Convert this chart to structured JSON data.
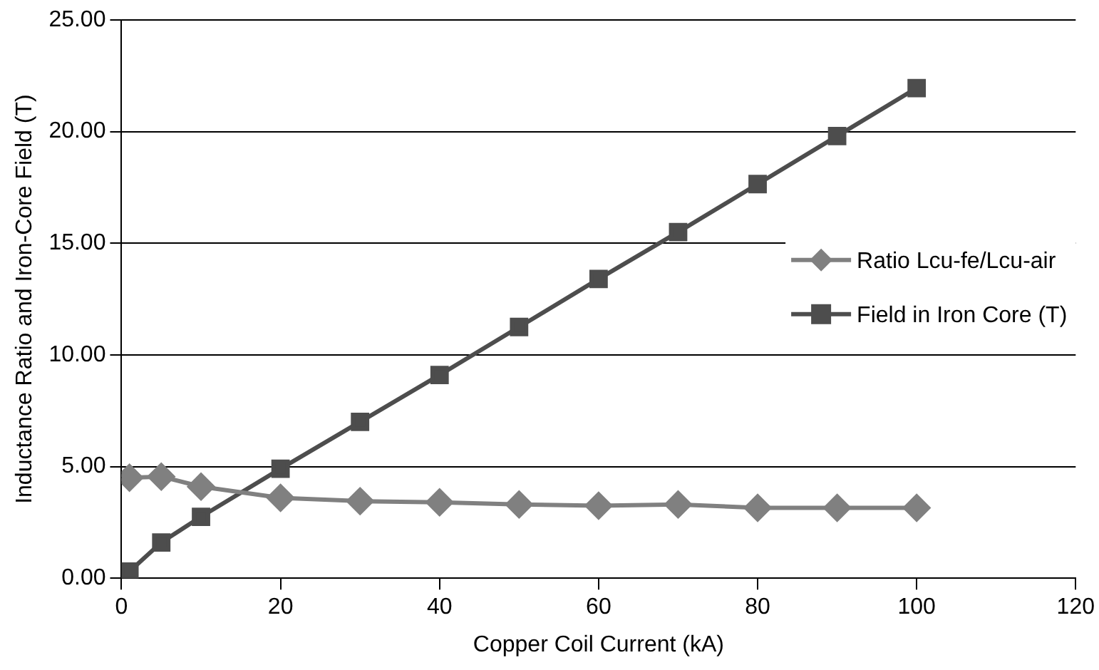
{
  "chart_data": {
    "type": "line",
    "xlabel": "Copper Coil Current (kA)",
    "ylabel": "Inductance Ratio and Iron-Core Field (T)",
    "x": [
      1,
      5,
      10,
      20,
      30,
      40,
      50,
      60,
      70,
      80,
      90,
      100
    ],
    "series": [
      {
        "name": "Ratio Lcu-fe/Lcu-air",
        "color": "#808080",
        "marker": "diamond",
        "values": [
          4.5,
          4.55,
          4.1,
          3.6,
          3.45,
          3.4,
          3.3,
          3.25,
          3.3,
          3.15,
          3.15,
          3.15
        ]
      },
      {
        "name": "Field in Iron Core (T)",
        "color": "#4d4d4d",
        "marker": "square",
        "values": [
          0.3,
          1.6,
          2.75,
          4.9,
          7.0,
          9.1,
          11.25,
          13.4,
          15.5,
          17.65,
          19.8,
          21.95
        ]
      }
    ],
    "xlim": [
      0,
      120
    ],
    "xticks": [
      0,
      20,
      40,
      60,
      80,
      100,
      120
    ],
    "ylim": [
      0,
      25
    ],
    "yticks": [
      {
        "value": 0,
        "label": "0.00"
      },
      {
        "value": 5,
        "label": "5.00"
      },
      {
        "value": 10,
        "label": "10.00"
      },
      {
        "value": 15,
        "label": "15.00"
      },
      {
        "value": 20,
        "label": "20.00"
      },
      {
        "value": 25,
        "label": "25.00"
      }
    ],
    "grid": "y",
    "legend": "right"
  }
}
